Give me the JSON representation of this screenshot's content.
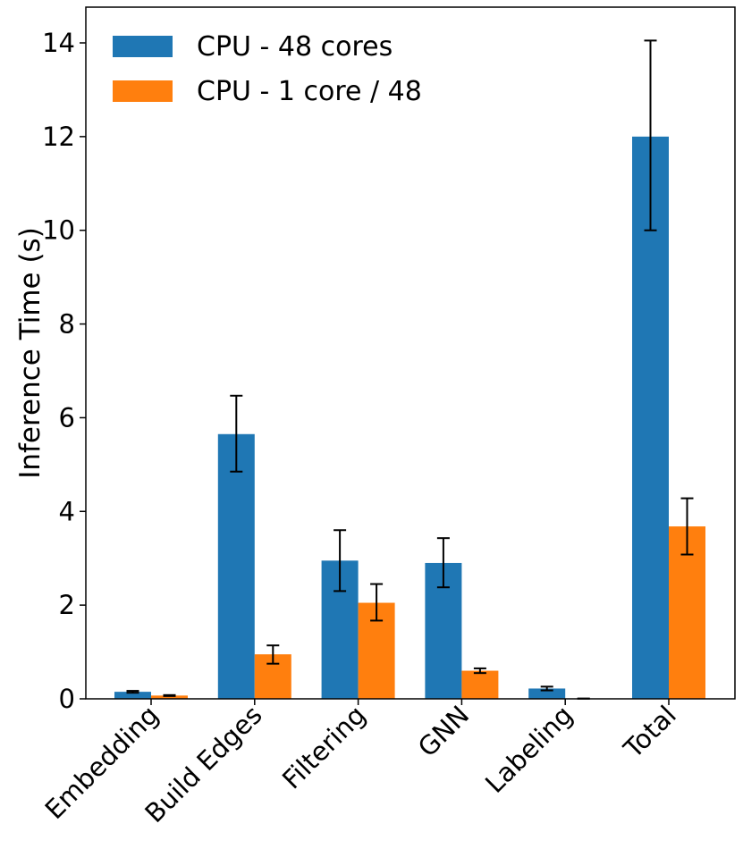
{
  "chart_data": {
    "type": "bar",
    "title": "",
    "xlabel": "",
    "ylabel": "Inference Time (s)",
    "ylim": [
      0,
      14.7
    ],
    "yticks": [
      0,
      2,
      4,
      6,
      8,
      10,
      12,
      14
    ],
    "categories": [
      "Embedding",
      "Build Edges",
      "Filtering",
      "GNN",
      "Labeling",
      "Total"
    ],
    "series": [
      {
        "name": "CPU - 48 cores",
        "color": "#1f77b4",
        "values": [
          0.15,
          5.65,
          2.95,
          2.9,
          0.22,
          12.0
        ],
        "err_low": [
          0.13,
          4.85,
          2.3,
          2.38,
          0.18,
          10.0
        ],
        "err_high": [
          0.17,
          6.47,
          3.6,
          3.43,
          0.26,
          14.05
        ]
      },
      {
        "name": "CPU - 1 core / 48",
        "color": "#ff7f0e",
        "values": [
          0.07,
          0.95,
          2.05,
          0.6,
          0.005,
          3.68
        ],
        "err_low": [
          0.06,
          0.75,
          1.67,
          0.55,
          0.004,
          3.08
        ],
        "err_high": [
          0.08,
          1.14,
          2.45,
          0.65,
          0.006,
          4.28
        ]
      }
    ],
    "legend": {
      "position": "top-left"
    },
    "grid": false
  }
}
